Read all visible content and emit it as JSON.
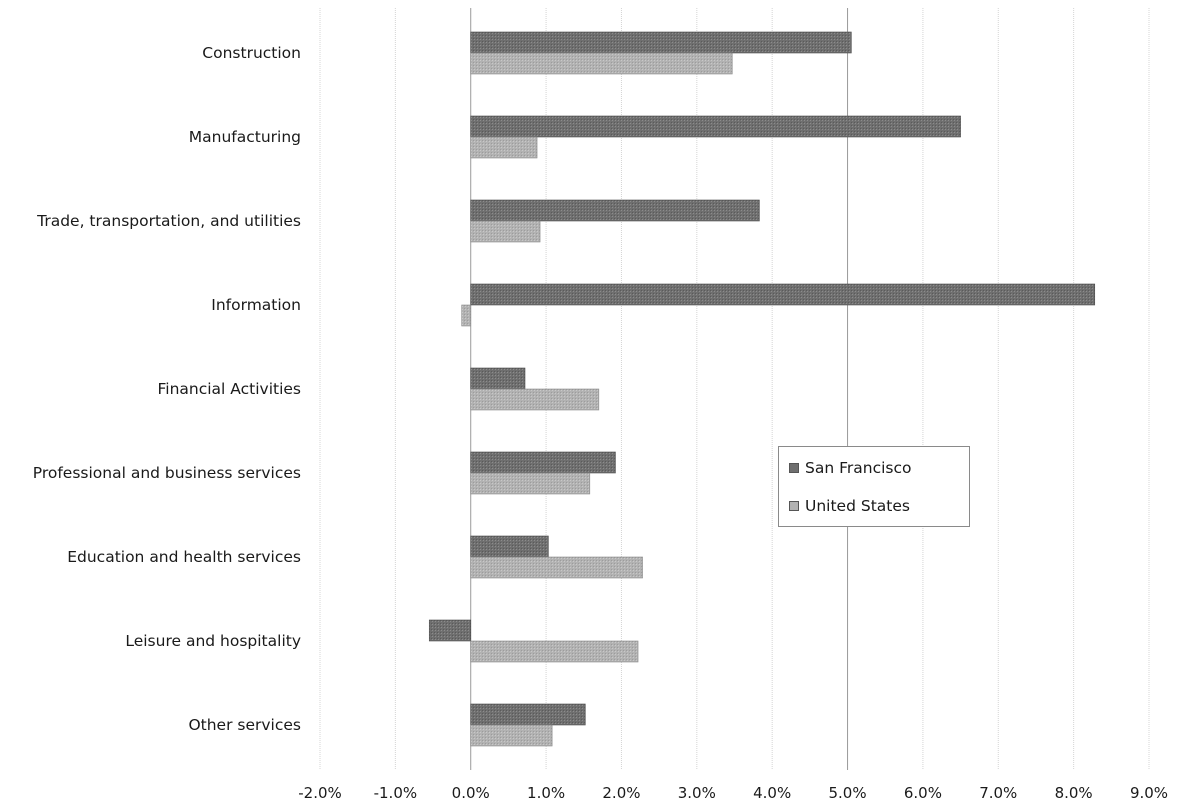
{
  "chart_data": {
    "type": "bar",
    "orientation": "horizontal",
    "categories": [
      "Construction",
      "Manufacturing",
      "Trade, transportation, and utilities",
      "Information",
      "Financial Activities",
      "Professional and business services",
      "Education and health services",
      "Leisure and hospitality",
      "Other services"
    ],
    "series": [
      {
        "name": "San Francisco",
        "color": "#6f6f6f",
        "values": [
          5.05,
          6.5,
          3.83,
          8.28,
          0.72,
          1.92,
          1.03,
          -0.55,
          1.52
        ]
      },
      {
        "name": "United States",
        "color": "#b2b2b2",
        "values": [
          3.47,
          0.88,
          0.92,
          -0.12,
          1.7,
          1.58,
          2.28,
          2.22,
          1.08
        ]
      }
    ],
    "x_ticks": [
      "-2.0%",
      "-1.0%",
      "0.0%",
      "1.0%",
      "2.0%",
      "3.0%",
      "4.0%",
      "5.0%",
      "6.0%",
      "7.0%",
      "8.0%",
      "9.0%"
    ],
    "xlim": [
      -2,
      9
    ],
    "xlabel": "",
    "ylabel": "",
    "title": "",
    "grid": true,
    "legend_position": "center-right"
  }
}
